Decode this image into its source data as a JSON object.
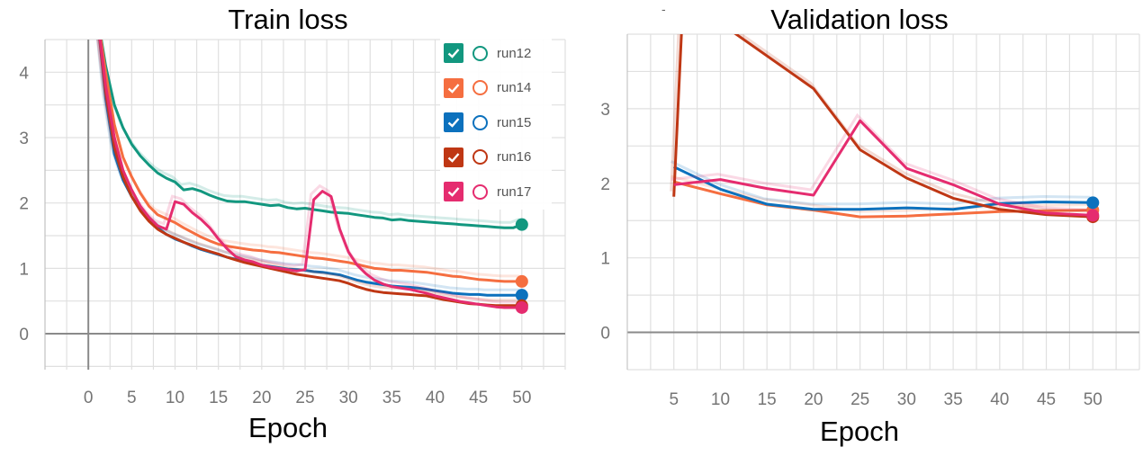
{
  "chart_data": [
    {
      "type": "line",
      "title": "Train loss",
      "xlabel": "Epoch",
      "ylabel": "",
      "xlim": [
        -5,
        55
      ],
      "ylim": [
        -0.55,
        4.5
      ],
      "xticks": [
        0,
        5,
        10,
        15,
        20,
        25,
        30,
        35,
        40,
        45,
        50
      ],
      "yticks": [
        0,
        1,
        2,
        3,
        4
      ],
      "grid": true,
      "legend": "top-right",
      "series": [
        {
          "name": "run12",
          "color": "#12977f",
          "x": [
            1,
            2,
            3,
            4,
            5,
            6,
            7,
            8,
            9,
            10,
            11,
            12,
            13,
            14,
            15,
            16,
            17,
            18,
            19,
            20,
            21,
            22,
            23,
            24,
            25,
            26,
            27,
            28,
            29,
            30,
            31,
            32,
            33,
            34,
            35,
            36,
            37,
            38,
            39,
            40,
            41,
            42,
            43,
            44,
            45,
            46,
            47,
            48,
            49,
            50
          ],
          "y": [
            4.9,
            4.1,
            3.5,
            3.15,
            2.9,
            2.72,
            2.58,
            2.46,
            2.38,
            2.32,
            2.2,
            2.22,
            2.18,
            2.12,
            2.07,
            2.03,
            2.02,
            2.02,
            2.0,
            1.98,
            1.96,
            1.97,
            1.93,
            1.91,
            1.92,
            1.9,
            1.88,
            1.86,
            1.85,
            1.84,
            1.82,
            1.8,
            1.78,
            1.77,
            1.74,
            1.75,
            1.73,
            1.72,
            1.71,
            1.7,
            1.69,
            1.68,
            1.67,
            1.66,
            1.65,
            1.64,
            1.63,
            1.62,
            1.62,
            1.67
          ]
        },
        {
          "name": "run14",
          "color": "#f56e40",
          "x": [
            1,
            2,
            3,
            4,
            5,
            6,
            7,
            8,
            9,
            10,
            11,
            12,
            13,
            14,
            15,
            16,
            17,
            18,
            19,
            20,
            21,
            22,
            23,
            24,
            25,
            26,
            27,
            28,
            29,
            30,
            31,
            32,
            33,
            34,
            35,
            36,
            37,
            38,
            39,
            40,
            41,
            42,
            43,
            44,
            45,
            46,
            47,
            48,
            49,
            50
          ],
          "y": [
            4.9,
            4.0,
            3.2,
            2.7,
            2.4,
            2.15,
            1.95,
            1.82,
            1.76,
            1.7,
            1.62,
            1.55,
            1.48,
            1.42,
            1.37,
            1.34,
            1.32,
            1.3,
            1.28,
            1.27,
            1.25,
            1.24,
            1.22,
            1.2,
            1.18,
            1.16,
            1.15,
            1.13,
            1.11,
            1.09,
            1.06,
            1.03,
            1.0,
            0.99,
            0.97,
            0.97,
            0.96,
            0.95,
            0.94,
            0.92,
            0.9,
            0.88,
            0.87,
            0.85,
            0.83,
            0.82,
            0.81,
            0.8,
            0.8,
            0.8
          ]
        },
        {
          "name": "run15",
          "color": "#0c71bd",
          "x": [
            1,
            2,
            3,
            4,
            5,
            6,
            7,
            8,
            9,
            10,
            11,
            12,
            13,
            14,
            15,
            16,
            17,
            18,
            19,
            20,
            21,
            22,
            23,
            24,
            25,
            26,
            27,
            28,
            29,
            30,
            31,
            32,
            33,
            34,
            35,
            36,
            37,
            38,
            39,
            40,
            41,
            42,
            43,
            44,
            45,
            46,
            47,
            48,
            49,
            50
          ],
          "y": [
            4.9,
            3.6,
            2.75,
            2.35,
            2.1,
            1.9,
            1.75,
            1.62,
            1.52,
            1.45,
            1.4,
            1.34,
            1.29,
            1.25,
            1.21,
            1.17,
            1.14,
            1.11,
            1.08,
            1.05,
            1.03,
            1.01,
            0.99,
            0.98,
            0.97,
            0.95,
            0.94,
            0.92,
            0.9,
            0.86,
            0.82,
            0.79,
            0.77,
            0.75,
            0.73,
            0.72,
            0.71,
            0.7,
            0.68,
            0.66,
            0.64,
            0.62,
            0.61,
            0.6,
            0.6,
            0.59,
            0.59,
            0.59,
            0.59,
            0.59
          ]
        },
        {
          "name": "run16",
          "color": "#bf3714",
          "x": [
            1,
            2,
            3,
            4,
            5,
            6,
            7,
            8,
            9,
            10,
            11,
            12,
            13,
            14,
            15,
            16,
            17,
            18,
            19,
            20,
            21,
            22,
            23,
            24,
            25,
            26,
            27,
            28,
            29,
            30,
            31,
            32,
            33,
            34,
            35,
            36,
            37,
            38,
            39,
            40,
            41,
            42,
            43,
            44,
            45,
            46,
            47,
            48,
            49,
            50
          ],
          "y": [
            4.9,
            3.7,
            2.85,
            2.4,
            2.1,
            1.88,
            1.72,
            1.6,
            1.52,
            1.46,
            1.4,
            1.35,
            1.3,
            1.26,
            1.22,
            1.17,
            1.13,
            1.09,
            1.06,
            1.03,
            1.0,
            0.97,
            0.94,
            0.91,
            0.89,
            0.87,
            0.85,
            0.83,
            0.81,
            0.77,
            0.72,
            0.68,
            0.65,
            0.63,
            0.62,
            0.61,
            0.6,
            0.59,
            0.58,
            0.55,
            0.52,
            0.5,
            0.48,
            0.46,
            0.45,
            0.44,
            0.43,
            0.43,
            0.43,
            0.43
          ]
        },
        {
          "name": "run17",
          "color": "#e52c6f",
          "x": [
            1,
            2,
            3,
            4,
            5,
            6,
            7,
            8,
            9,
            10,
            11,
            12,
            13,
            14,
            15,
            16,
            17,
            18,
            19,
            20,
            21,
            22,
            23,
            24,
            25,
            26,
            27,
            28,
            29,
            30,
            31,
            32,
            33,
            34,
            35,
            36,
            37,
            38,
            39,
            40,
            41,
            42,
            43,
            44,
            45,
            46,
            47,
            48,
            49,
            50
          ],
          "y": [
            4.9,
            3.8,
            3.0,
            2.5,
            2.2,
            1.95,
            1.78,
            1.65,
            1.6,
            2.02,
            1.98,
            1.85,
            1.75,
            1.62,
            1.45,
            1.3,
            1.18,
            1.13,
            1.1,
            1.05,
            1.02,
            1.0,
            0.98,
            0.96,
            0.98,
            2.05,
            2.18,
            2.1,
            1.6,
            1.25,
            1.05,
            0.92,
            0.82,
            0.76,
            0.72,
            0.7,
            0.68,
            0.65,
            0.62,
            0.58,
            0.55,
            0.52,
            0.49,
            0.47,
            0.45,
            0.43,
            0.41,
            0.4,
            0.4,
            0.4
          ]
        }
      ]
    },
    {
      "type": "line",
      "title": "Validation loss",
      "xlabel": "Epoch",
      "ylabel": "",
      "xlim": [
        0,
        55
      ],
      "ylim": [
        -0.5,
        4.0
      ],
      "xticks": [
        5,
        10,
        15,
        20,
        25,
        30,
        35,
        40,
        45,
        50
      ],
      "yticks": [
        0,
        1,
        2,
        3
      ],
      "grid": true,
      "series": [
        {
          "name": "run12",
          "color": "#12977f",
          "x": [],
          "y": []
        },
        {
          "name": "run14",
          "color": "#f56e40",
          "x": [
            5,
            10,
            15,
            20,
            25,
            30,
            35,
            40,
            45,
            50
          ],
          "y": [
            2.02,
            1.86,
            1.71,
            1.64,
            1.55,
            1.56,
            1.59,
            1.62,
            1.63,
            1.64
          ]
        },
        {
          "name": "run15",
          "color": "#0c71bd",
          "x": [
            5,
            10,
            15,
            20,
            25,
            30,
            35,
            40,
            45,
            50
          ],
          "y": [
            2.22,
            1.92,
            1.72,
            1.65,
            1.65,
            1.67,
            1.65,
            1.73,
            1.75,
            1.74
          ]
        },
        {
          "name": "run16",
          "color": "#bf3714",
          "x": [
            5,
            6,
            20,
            25,
            30,
            35,
            40,
            45,
            50
          ],
          "y": [
            1.82,
            4.5,
            3.27,
            2.45,
            2.07,
            1.8,
            1.65,
            1.58,
            1.55
          ]
        },
        {
          "name": "run17",
          "color": "#e52c6f",
          "x": [
            5,
            10,
            15,
            20,
            25,
            30,
            35,
            40,
            45,
            50
          ],
          "y": [
            1.98,
            2.05,
            1.93,
            1.84,
            2.84,
            2.2,
            1.98,
            1.72,
            1.6,
            1.57
          ]
        }
      ]
    }
  ],
  "legend": {
    "items": [
      {
        "label": "run12",
        "color": "#12977f"
      },
      {
        "label": "run14",
        "color": "#f56e40"
      },
      {
        "label": "run15",
        "color": "#0c71bd"
      },
      {
        "label": "run16",
        "color": "#bf3714"
      },
      {
        "label": "run17",
        "color": "#e52c6f"
      }
    ]
  },
  "icons": {
    "legend_check": "checkbox-checked-icon",
    "legend_circle": "circle-outline-icon"
  },
  "right_panel_mark": "-"
}
